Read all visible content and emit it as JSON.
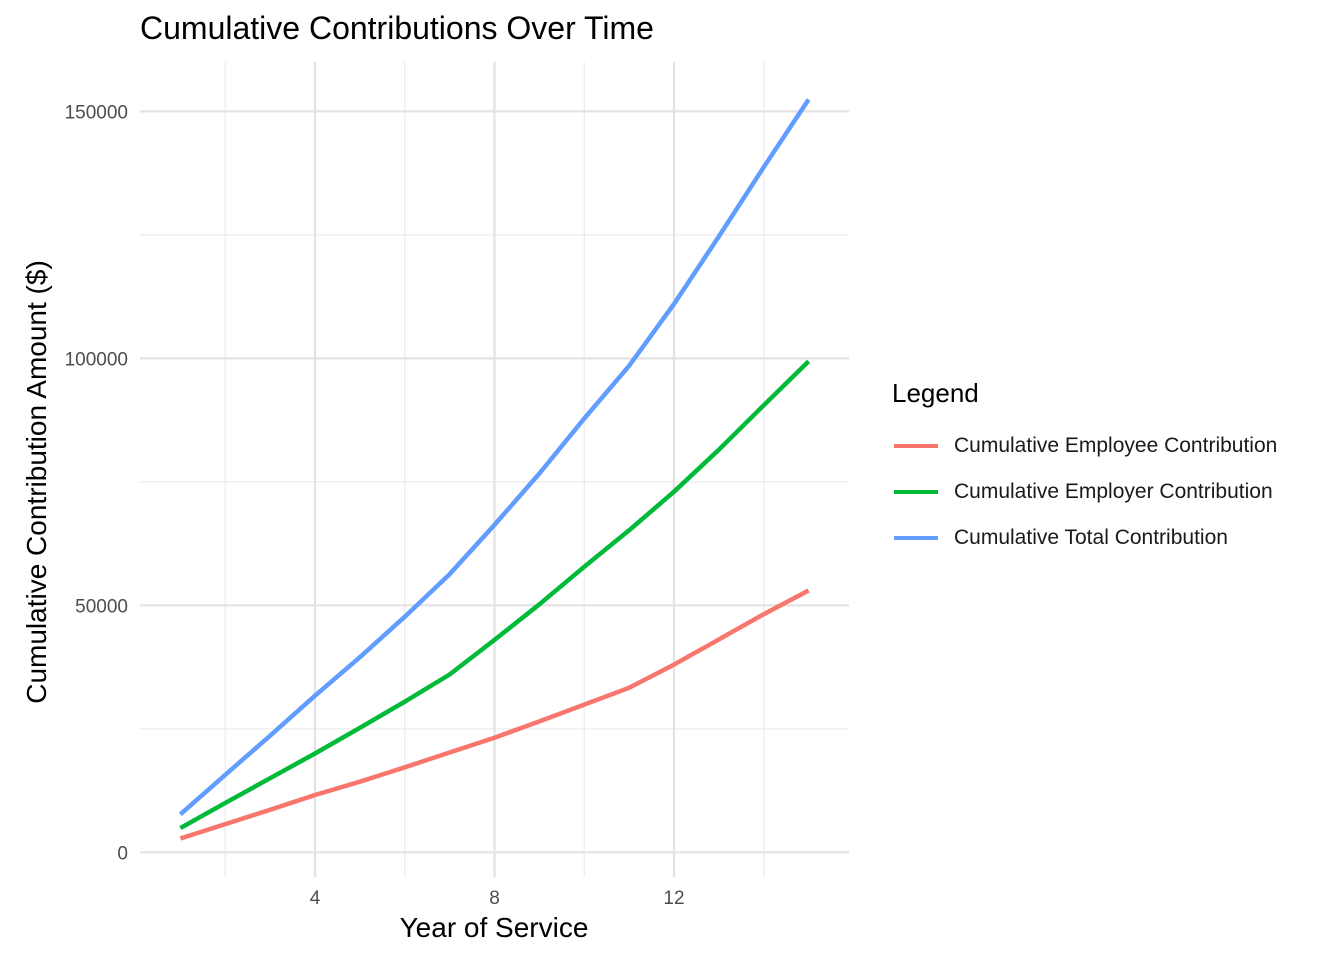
{
  "chart_data": {
    "type": "line",
    "title": "Cumulative Contributions Over Time",
    "xlabel": "Year of Service",
    "ylabel": "Cumulative Contribution Amount ($)",
    "x": [
      1,
      2,
      3,
      4,
      5,
      6,
      7,
      8,
      9,
      10,
      11,
      12,
      13,
      14,
      15
    ],
    "xlim": [
      0.1,
      15.9
    ],
    "ylim": [
      -5000,
      160000
    ],
    "x_ticks": [
      4,
      8,
      12
    ],
    "x_tick_labels": [
      "4",
      "8",
      "12"
    ],
    "x_minor_ticks": [
      2,
      6,
      10,
      14
    ],
    "y_ticks": [
      0,
      50000,
      100000,
      150000
    ],
    "y_tick_labels": [
      "0",
      "50000",
      "100000",
      "150000"
    ],
    "y_minor_ticks": [
      25000,
      75000,
      125000
    ],
    "grid": true,
    "legend_title": "Legend",
    "legend_position": "right",
    "series": [
      {
        "name": "Cumulative Employee Contribution",
        "color": "#F8766D",
        "values": [
          2800,
          5700,
          8600,
          11600,
          14300,
          17200,
          20200,
          23200,
          26500,
          29900,
          33300,
          38000,
          43100,
          48200,
          53000
        ]
      },
      {
        "name": "Cumulative Employer Contribution",
        "color": "#00BA38",
        "values": [
          4900,
          10000,
          15000,
          20000,
          25200,
          30500,
          36000,
          43000,
          50200,
          57800,
          65200,
          73000,
          81500,
          90500,
          99400
        ]
      },
      {
        "name": "Cumulative Total Contribution",
        "color": "#619CFF",
        "values": [
          7700,
          15700,
          23600,
          31700,
          39500,
          47700,
          56300,
          66300,
          76700,
          87800,
          98500,
          111000,
          124700,
          138700,
          152400
        ]
      }
    ]
  }
}
